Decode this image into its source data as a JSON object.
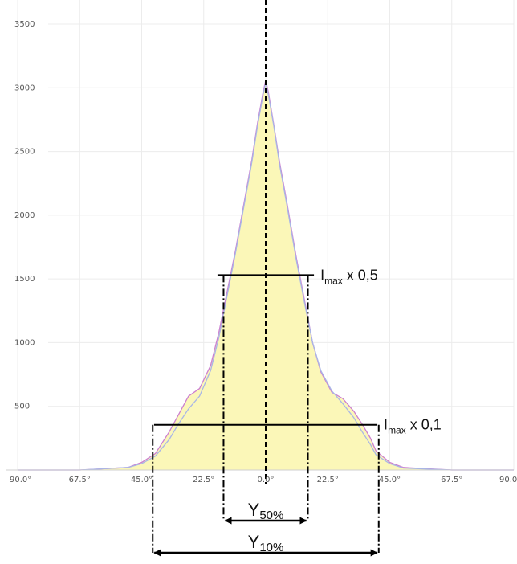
{
  "colors": {
    "fill": "#fbf7b8",
    "curve_a": "#cc7fd0",
    "curve_b": "#a9b6e6",
    "grid": "#ececec",
    "axis": "#cfcfcf",
    "ink": "#000000"
  },
  "chart_data": {
    "type": "area",
    "title": "",
    "xlabel": "",
    "ylabel": "",
    "ylim": [
      0,
      3500
    ],
    "xlim": [
      -90,
      90
    ],
    "y_ticks": [
      "3500",
      "3000",
      "2500",
      "2000",
      "1500",
      "1000",
      "500"
    ],
    "y_tick_values": [
      3500,
      3000,
      2500,
      2000,
      1500,
      1000,
      500
    ],
    "x_ticks": [
      "90.0°",
      "67.5°",
      "45.0°",
      "22.5°",
      "0.0°",
      "22.5°",
      "45.0°",
      "67.5°",
      "90.0°"
    ],
    "x_tick_values": [
      -90,
      -67.5,
      -45,
      -22.5,
      0,
      22.5,
      45,
      67.5,
      90
    ],
    "grid": true,
    "series": [
      {
        "x": [
          -90,
          -67.5,
          -50,
          -45,
          -40,
          -35,
          -32,
          -28,
          -24,
          -20,
          -17,
          -14,
          -11,
          -8,
          -5,
          -3,
          -1,
          0,
          1,
          3,
          5,
          8,
          11,
          14,
          17,
          20,
          24,
          28,
          32,
          35,
          38,
          40,
          45,
          50,
          67.5,
          90
        ],
        "y": [
          0,
          0,
          20,
          60,
          130,
          300,
          420,
          580,
          640,
          820,
          1080,
          1400,
          1720,
          2080,
          2440,
          2720,
          2960,
          3060,
          2960,
          2700,
          2420,
          2060,
          1680,
          1340,
          1000,
          770,
          610,
          560,
          460,
          360,
          250,
          150,
          60,
          20,
          0,
          0
        ]
      },
      {
        "x": [
          -90,
          -67.5,
          -50,
          -45,
          -40,
          -35,
          -32,
          -28,
          -24,
          -20,
          -17,
          -14,
          -11,
          -8,
          -5,
          -3,
          -1,
          0,
          1,
          3,
          5,
          8,
          11,
          14,
          17,
          20,
          24,
          28,
          32,
          35,
          38,
          40,
          45,
          50,
          67.5,
          90
        ],
        "y": [
          0,
          0,
          20,
          50,
          110,
          240,
          350,
          480,
          580,
          780,
          1040,
          1370,
          1700,
          2060,
          2420,
          2700,
          2940,
          3040,
          2940,
          2690,
          2400,
          2040,
          1660,
          1320,
          1000,
          780,
          620,
          520,
          410,
          300,
          200,
          120,
          50,
          15,
          0,
          0
        ]
      }
    ],
    "annotations": [
      {
        "level": 1530,
        "x_start": -17.5,
        "x_end": 17.5,
        "label_main": "I",
        "label_sub": "max",
        "label_rest": " x 0,5"
      },
      {
        "level": 355,
        "x_start": -40.5,
        "x_end": 40.5,
        "label_main": "I",
        "label_sub": "max",
        "label_rest": " x 0,1"
      }
    ],
    "widths": [
      {
        "level_index": 0,
        "label_main": "Y",
        "label_sub": "50%"
      },
      {
        "level_index": 1,
        "label_main": "Y",
        "label_sub": "10%"
      }
    ]
  }
}
